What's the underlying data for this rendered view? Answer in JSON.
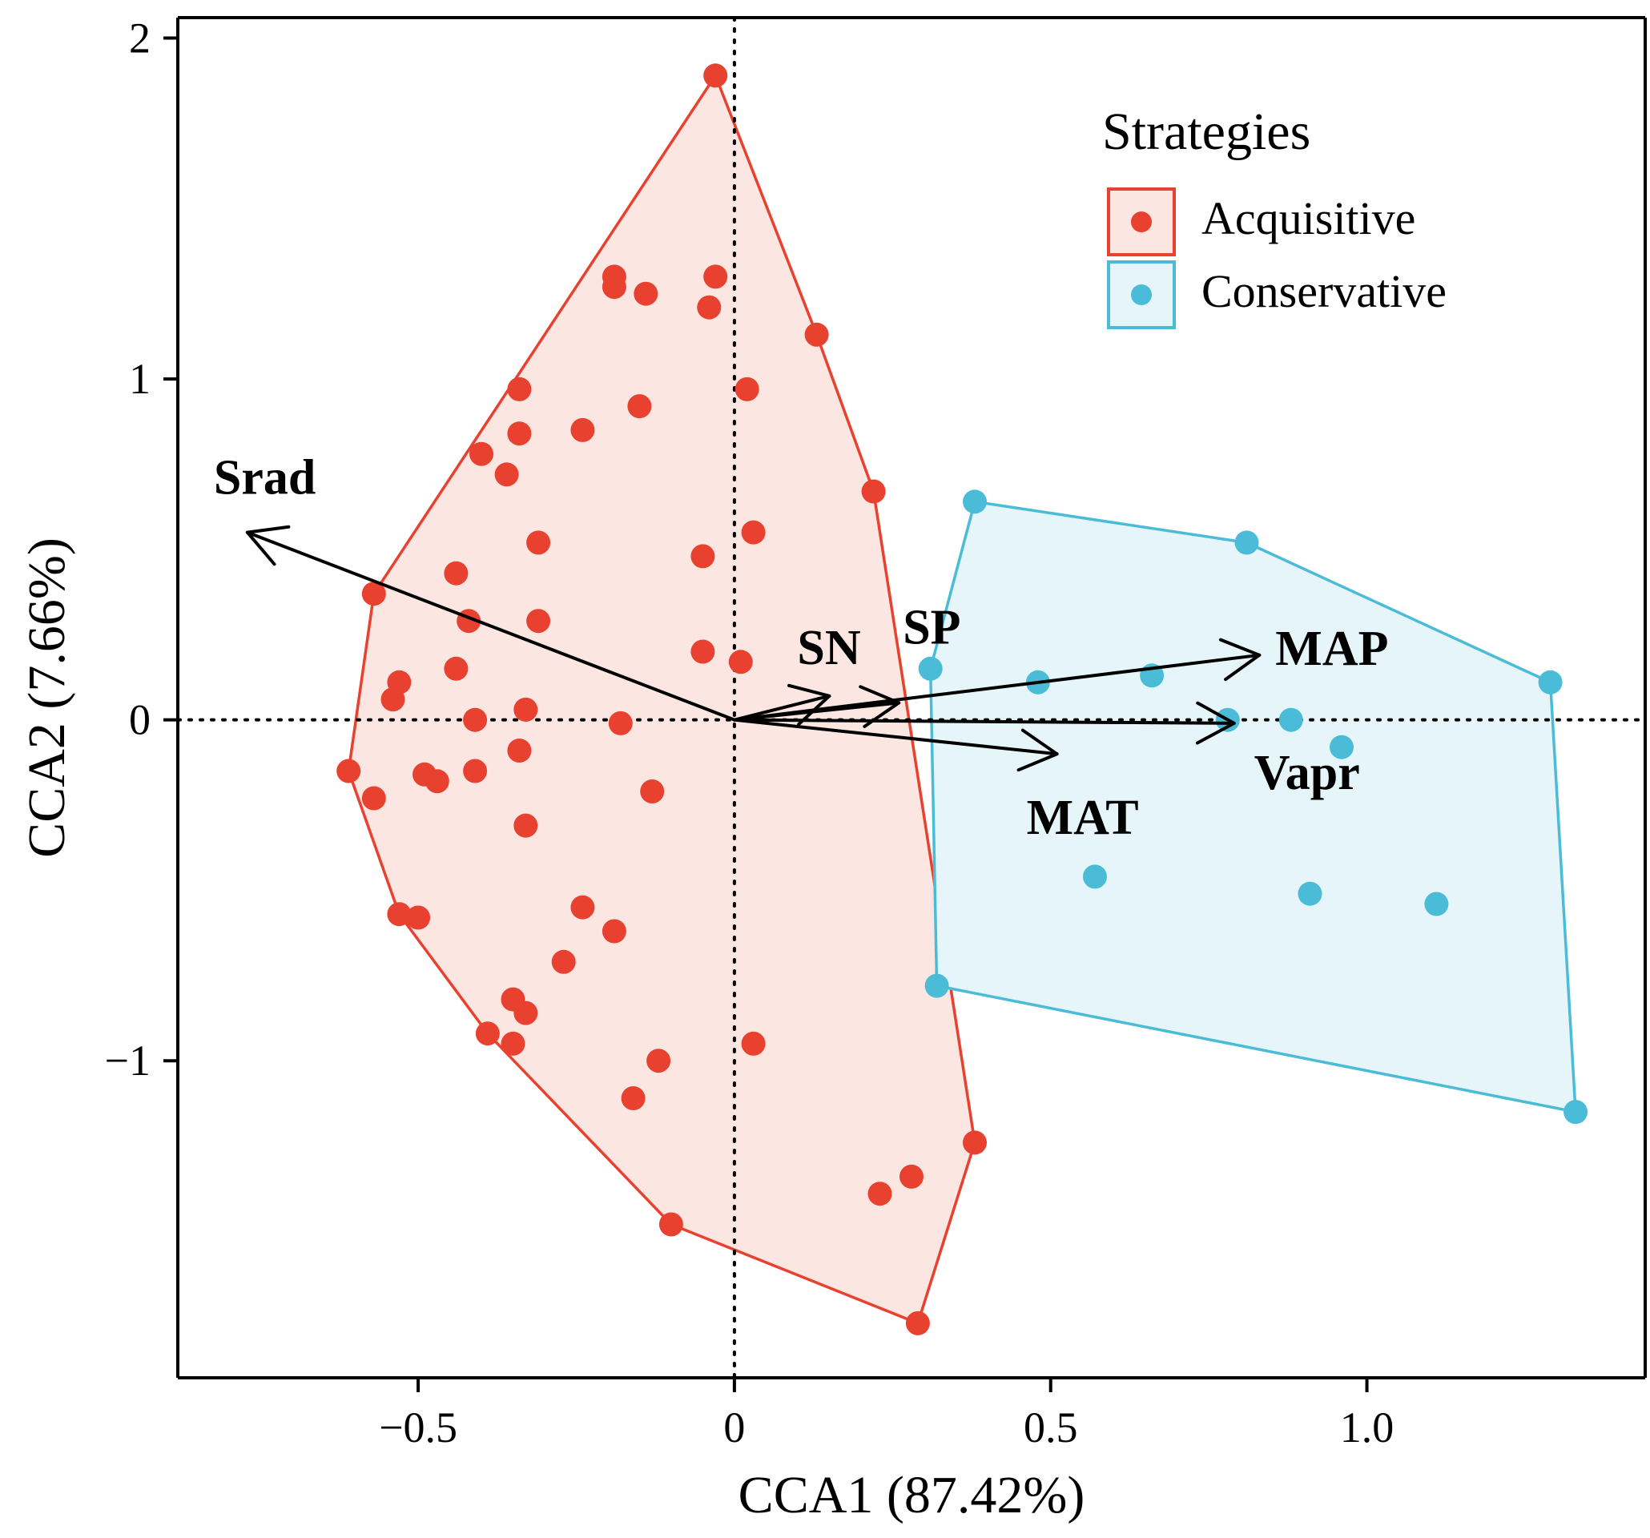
{
  "chart_data": {
    "type": "scatter",
    "title": "",
    "xlabel": "CCA1 (87.42%)",
    "ylabel": "CCA2 (7.66%)",
    "xlim": [
      -0.88,
      1.44
    ],
    "ylim": [
      -1.93,
      2.06
    ],
    "xticks": [
      -0.5,
      0,
      0.5,
      1.0
    ],
    "xtick_labels": [
      "−0.5",
      "0",
      "0.5",
      "1.0"
    ],
    "yticks": [
      -1,
      0,
      1,
      2
    ],
    "ytick_labels": [
      "−1",
      "0",
      "1",
      "2"
    ],
    "reference_lines": {
      "x": 0,
      "y": 0,
      "style": "dotted"
    },
    "legend": {
      "title": "Strategies",
      "position": "top-right",
      "entries": [
        {
          "label": "Acquisitive",
          "color": "#e8412f",
          "fill": "#fbe6e2"
        },
        {
          "label": "Conservative",
          "color": "#4bbcd8",
          "fill": "#e5f5f9"
        }
      ]
    },
    "series": [
      {
        "name": "Acquisitive",
        "color": "#e8412f",
        "hull_fill": "#fbe6e2",
        "hull": [
          [
            -0.03,
            1.89
          ],
          [
            0.13,
            1.13
          ],
          [
            0.22,
            0.67
          ],
          [
            0.38,
            -1.24
          ],
          [
            0.29,
            -1.77
          ],
          [
            -0.1,
            -1.48
          ],
          [
            -0.39,
            -0.92
          ],
          [
            -0.53,
            -0.57
          ],
          [
            -0.61,
            -0.15
          ],
          [
            -0.57,
            0.37
          ]
        ],
        "points": [
          [
            -0.03,
            1.89
          ],
          [
            0.13,
            1.13
          ],
          [
            0.22,
            0.67
          ],
          [
            0.38,
            -1.24
          ],
          [
            0.29,
            -1.77
          ],
          [
            -0.1,
            -1.48
          ],
          [
            -0.39,
            -0.92
          ],
          [
            -0.53,
            -0.57
          ],
          [
            -0.61,
            -0.15
          ],
          [
            -0.57,
            0.37
          ],
          [
            -0.19,
            1.3
          ],
          [
            -0.19,
            1.27
          ],
          [
            -0.14,
            1.25
          ],
          [
            -0.03,
            1.3
          ],
          [
            -0.04,
            1.21
          ],
          [
            -0.34,
            0.97
          ],
          [
            -0.15,
            0.92
          ],
          [
            0.02,
            0.97
          ],
          [
            -0.34,
            0.84
          ],
          [
            -0.24,
            0.85
          ],
          [
            -0.4,
            0.78
          ],
          [
            -0.36,
            0.72
          ],
          [
            -0.31,
            0.52
          ],
          [
            -0.05,
            0.48
          ],
          [
            0.03,
            0.55
          ],
          [
            -0.44,
            0.43
          ],
          [
            -0.42,
            0.29
          ],
          [
            -0.31,
            0.29
          ],
          [
            -0.05,
            0.2
          ],
          [
            0.01,
            0.17
          ],
          [
            -0.44,
            0.15
          ],
          [
            -0.53,
            0.11
          ],
          [
            -0.54,
            0.06
          ],
          [
            -0.33,
            0.03
          ],
          [
            -0.41,
            0.0
          ],
          [
            -0.18,
            -0.01
          ],
          [
            -0.34,
            -0.09
          ],
          [
            -0.49,
            -0.16
          ],
          [
            -0.47,
            -0.18
          ],
          [
            -0.41,
            -0.15
          ],
          [
            -0.57,
            -0.23
          ],
          [
            -0.13,
            -0.21
          ],
          [
            -0.33,
            -0.31
          ],
          [
            -0.24,
            -0.55
          ],
          [
            -0.5,
            -0.58
          ],
          [
            -0.19,
            -0.62
          ],
          [
            -0.27,
            -0.71
          ],
          [
            -0.35,
            -0.82
          ],
          [
            -0.33,
            -0.86
          ],
          [
            -0.35,
            -0.95
          ],
          [
            0.03,
            -0.95
          ],
          [
            -0.12,
            -1.0
          ],
          [
            -0.16,
            -1.11
          ],
          [
            0.28,
            -1.34
          ],
          [
            0.23,
            -1.39
          ]
        ]
      },
      {
        "name": "Conservative",
        "color": "#4bbcd8",
        "hull_fill": "#e5f5f9",
        "hull": [
          [
            0.38,
            0.64
          ],
          [
            0.81,
            0.52
          ],
          [
            1.29,
            0.11
          ],
          [
            1.33,
            -1.15
          ],
          [
            0.32,
            -0.78
          ],
          [
            0.31,
            0.15
          ]
        ],
        "points": [
          [
            0.38,
            0.64
          ],
          [
            0.81,
            0.52
          ],
          [
            1.29,
            0.11
          ],
          [
            1.33,
            -1.15
          ],
          [
            0.32,
            -0.78
          ],
          [
            0.31,
            0.15
          ],
          [
            0.48,
            0.11
          ],
          [
            0.66,
            0.13
          ],
          [
            0.78,
            0.0
          ],
          [
            0.88,
            0.0
          ],
          [
            0.96,
            -0.08
          ],
          [
            0.57,
            -0.46
          ],
          [
            0.91,
            -0.51
          ],
          [
            1.11,
            -0.54
          ]
        ]
      }
    ],
    "arrows": [
      {
        "label": "Srad",
        "x": -0.77,
        "y": 0.55
      },
      {
        "label": "SN",
        "x": 0.15,
        "y": 0.07
      },
      {
        "label": "SP",
        "x": 0.26,
        "y": 0.05
      },
      {
        "label": "MAP",
        "x": 0.83,
        "y": 0.19
      },
      {
        "label": "Vapr",
        "x": 0.79,
        "y": -0.01
      },
      {
        "label": "MAT",
        "x": 0.51,
        "y": -0.1
      }
    ]
  }
}
